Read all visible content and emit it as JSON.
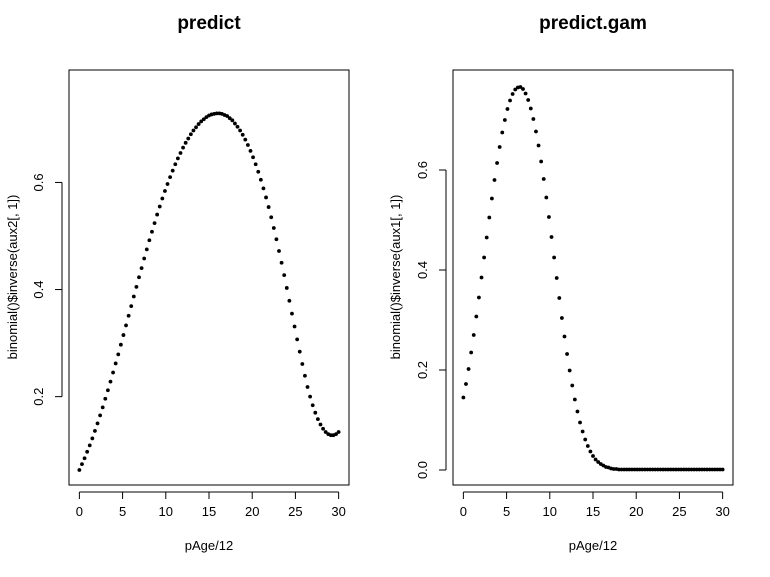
{
  "chart_data": [
    {
      "type": "scatter",
      "title": "predict",
      "xlabel": "pAge/12",
      "ylabel": "binomial()$inverse(aux2[, 1])",
      "xlim": [
        -1.2,
        31.2
      ],
      "ylim": [
        0.035,
        0.81
      ],
      "xticks": [
        0,
        5,
        10,
        15,
        20,
        25,
        30
      ],
      "yticks": [
        0.2,
        0.4,
        0.6
      ],
      "xtick_labels": [
        "0",
        "5",
        "10",
        "15",
        "20",
        "25",
        "30"
      ],
      "ytick_labels": [
        "0.2",
        "0.4",
        "0.6"
      ],
      "series": [
        {
          "x": [
            0,
            0.3,
            0.6,
            0.9,
            1.2,
            1.5,
            1.8,
            2.1,
            2.4,
            2.7,
            3,
            3.3,
            3.6,
            3.9,
            4.2,
            4.5,
            4.8,
            5.1,
            5.4,
            5.7,
            6,
            6.3,
            6.6,
            6.9,
            7.2,
            7.5,
            7.8,
            8.1,
            8.4,
            8.7,
            9,
            9.3,
            9.6,
            9.9,
            10.2,
            10.5,
            10.8,
            11.1,
            11.4,
            11.7,
            12,
            12.3,
            12.6,
            12.9,
            13.2,
            13.5,
            13.8,
            14.1,
            14.4,
            14.7,
            15,
            15.3,
            15.6,
            15.9,
            16.2,
            16.5,
            16.8,
            17.1,
            17.4,
            17.7,
            18,
            18.3,
            18.6,
            18.9,
            19.2,
            19.5,
            19.8,
            20.1,
            20.4,
            20.7,
            21,
            21.3,
            21.6,
            21.9,
            22.2,
            22.5,
            22.8,
            23.1,
            23.4,
            23.7,
            24,
            24.3,
            24.6,
            24.9,
            25.2,
            25.5,
            25.8,
            26.1,
            26.4,
            26.7,
            27,
            27.3,
            27.6,
            27.9,
            28.2,
            28.5,
            28.8,
            29.1,
            29.4,
            29.7,
            30
          ],
          "y": [
            0.063,
            0.074,
            0.085,
            0.097,
            0.109,
            0.122,
            0.136,
            0.15,
            0.165,
            0.18,
            0.196,
            0.212,
            0.228,
            0.245,
            0.262,
            0.279,
            0.297,
            0.315,
            0.333,
            0.351,
            0.369,
            0.387,
            0.405,
            0.423,
            0.44,
            0.458,
            0.475,
            0.492,
            0.508,
            0.524,
            0.54,
            0.555,
            0.57,
            0.584,
            0.597,
            0.61,
            0.622,
            0.634,
            0.645,
            0.655,
            0.665,
            0.674,
            0.682,
            0.69,
            0.697,
            0.703,
            0.709,
            0.714,
            0.718,
            0.722,
            0.725,
            0.727,
            0.728,
            0.729,
            0.729,
            0.728,
            0.726,
            0.724,
            0.72,
            0.716,
            0.71,
            0.704,
            0.697,
            0.689,
            0.68,
            0.67,
            0.659,
            0.647,
            0.634,
            0.62,
            0.605,
            0.589,
            0.572,
            0.554,
            0.535,
            0.515,
            0.494,
            0.472,
            0.45,
            0.427,
            0.403,
            0.379,
            0.355,
            0.331,
            0.307,
            0.284,
            0.261,
            0.239,
            0.218,
            0.2,
            0.184,
            0.17,
            0.158,
            0.148,
            0.14,
            0.134,
            0.13,
            0.128,
            0.128,
            0.13,
            0.134
          ]
        }
      ]
    },
    {
      "type": "scatter",
      "title": "predict.gam",
      "xlabel": "pAge/12",
      "ylabel": "binomial()$inverse(aux1[, 1])",
      "xlim": [
        -1.2,
        31.2
      ],
      "ylim": [
        -0.03,
        0.8
      ],
      "xticks": [
        0,
        5,
        10,
        15,
        20,
        25,
        30
      ],
      "yticks": [
        0.0,
        0.2,
        0.4,
        0.6
      ],
      "xtick_labels": [
        "0",
        "5",
        "10",
        "15",
        "20",
        "25",
        "30"
      ],
      "ytick_labels": [
        "0.0",
        "0.2",
        "0.4",
        "0.6"
      ],
      "series": [
        {
          "x": [
            0,
            0.3,
            0.6,
            0.9,
            1.2,
            1.5,
            1.8,
            2.1,
            2.4,
            2.7,
            3,
            3.3,
            3.6,
            3.9,
            4.2,
            4.5,
            4.8,
            5.1,
            5.4,
            5.7,
            6,
            6.3,
            6.6,
            6.9,
            7.2,
            7.5,
            7.8,
            8.1,
            8.4,
            8.7,
            9,
            9.3,
            9.6,
            9.9,
            10.2,
            10.5,
            10.8,
            11.1,
            11.4,
            11.7,
            12,
            12.3,
            12.6,
            12.9,
            13.2,
            13.5,
            13.8,
            14.1,
            14.4,
            14.7,
            15,
            15.3,
            15.6,
            15.9,
            16.2,
            16.5,
            16.8,
            17.1,
            17.4,
            17.7,
            18,
            18.3,
            18.6,
            18.9,
            19.2,
            19.5,
            19.8,
            20.1,
            20.4,
            20.7,
            21,
            21.3,
            21.6,
            21.9,
            22.2,
            22.5,
            22.8,
            23.1,
            23.4,
            23.7,
            24,
            24.3,
            24.6,
            24.9,
            25.2,
            25.5,
            25.8,
            26.1,
            26.4,
            26.7,
            27,
            27.3,
            27.6,
            27.9,
            28.2,
            28.5,
            28.8,
            29.1,
            29.4,
            29.7,
            30
          ],
          "y": [
            0.145,
            0.172,
            0.202,
            0.235,
            0.27,
            0.307,
            0.345,
            0.385,
            0.425,
            0.465,
            0.505,
            0.543,
            0.58,
            0.614,
            0.646,
            0.675,
            0.7,
            0.722,
            0.739,
            0.752,
            0.761,
            0.765,
            0.766,
            0.762,
            0.753,
            0.74,
            0.723,
            0.702,
            0.677,
            0.649,
            0.617,
            0.582,
            0.545,
            0.506,
            0.466,
            0.425,
            0.384,
            0.344,
            0.304,
            0.267,
            0.232,
            0.199,
            0.169,
            0.141,
            0.117,
            0.095,
            0.077,
            0.061,
            0.048,
            0.037,
            0.028,
            0.021,
            0.016,
            0.012,
            0.009,
            0.006,
            0.005,
            0.003,
            0.002,
            0.002,
            0.001,
            0.001,
            0.001,
            0.001,
            0.001,
            0.001,
            0.001,
            0.001,
            0.001,
            0.001,
            0.001,
            0.001,
            0.001,
            0.001,
            0.001,
            0.001,
            0.001,
            0.001,
            0.001,
            0.001,
            0.001,
            0.001,
            0.001,
            0.001,
            0.001,
            0.001,
            0.001,
            0.001,
            0.001,
            0.001,
            0.001,
            0.001,
            0.001,
            0.001,
            0.001,
            0.001,
            0.001,
            0.001,
            0.001,
            0.001,
            0.001
          ]
        }
      ]
    }
  ]
}
